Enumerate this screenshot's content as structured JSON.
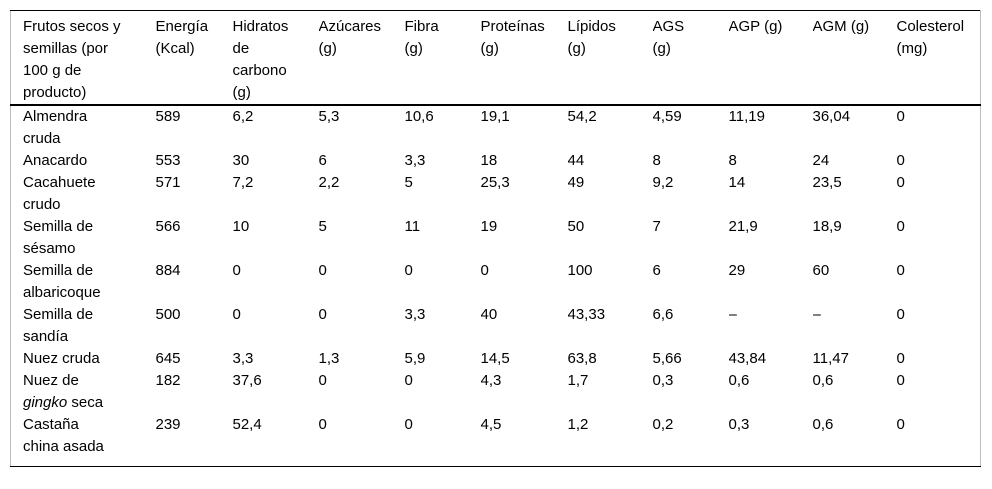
{
  "table": {
    "title": "Frutos secos y semillas (por 100 g de producto)",
    "columns": [
      "Frutos secos y\nsemillas (por\n100 g de\nproducto)",
      "Energía\n(Kcal)",
      "Hidratos\nde\ncarbono\n(g)",
      "Azúcares\n(g)",
      "Fibra\n(g)",
      "Proteínas\n(g)",
      "Lípidos\n(g)",
      "AGS\n(g)",
      "AGP (g)",
      "AGM (g)",
      "Colesterol\n(mg)"
    ],
    "rows": [
      {
        "name": [
          {
            "t": "Almendra\ncruda"
          }
        ],
        "values": [
          "589",
          "6,2",
          "5,3",
          "10,6",
          "19,1",
          "54,2",
          "4,59",
          "11,19",
          "36,04",
          "0"
        ]
      },
      {
        "name": [
          {
            "t": "Anacardo"
          }
        ],
        "values": [
          "553",
          "30",
          "6",
          "3,3",
          "18",
          "44",
          "8",
          "8",
          "24",
          "0"
        ]
      },
      {
        "name": [
          {
            "t": "Cacahuete\ncrudo"
          }
        ],
        "values": [
          "571",
          "7,2",
          "2,2",
          "5",
          "25,3",
          "49",
          "9,2",
          "14",
          "23,5",
          "0"
        ]
      },
      {
        "name": [
          {
            "t": "Semilla de\nsésamo"
          }
        ],
        "values": [
          "566",
          "10",
          "5",
          "11",
          "19",
          "50",
          "7",
          "21,9",
          "18,9",
          "0"
        ]
      },
      {
        "name": [
          {
            "t": "Semilla de\nalbaricoque"
          }
        ],
        "values": [
          "884",
          "0",
          "0",
          "0",
          "0",
          "100",
          "6",
          "29",
          "60",
          "0"
        ]
      },
      {
        "name": [
          {
            "t": "Semilla de\nsandía"
          }
        ],
        "values": [
          "500",
          "0",
          "0",
          "3,3",
          "40",
          "43,33",
          "6,6",
          "–",
          "–",
          "0"
        ]
      },
      {
        "name": [
          {
            "t": "Nuez cruda"
          }
        ],
        "values": [
          "645",
          "3,3",
          "1,3",
          "5,9",
          "14,5",
          "63,8",
          "5,66",
          "43,84",
          "11,47",
          "0"
        ]
      },
      {
        "name": [
          {
            "t": "Nuez de\n"
          },
          {
            "t": "gingko",
            "italic": true
          },
          {
            "t": " seca"
          }
        ],
        "values": [
          "182",
          "37,6",
          "0",
          "0",
          "4,3",
          "1,7",
          "0,3",
          "0,6",
          "0,6",
          "0"
        ]
      },
      {
        "name": [
          {
            "t": "Castaña\nchina asada"
          }
        ],
        "values": [
          "239",
          "52,4",
          "0",
          "0",
          "4,5",
          "1,2",
          "0,2",
          "0,3",
          "0,6",
          "0"
        ]
      }
    ]
  },
  "colors": {
    "rule": "#000000",
    "side_border": "#bdbdbd",
    "text": "#000000",
    "background": "#ffffff"
  }
}
